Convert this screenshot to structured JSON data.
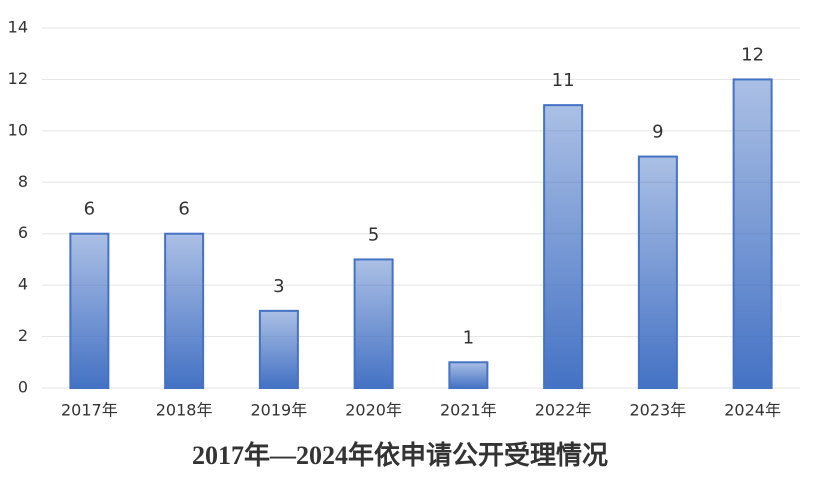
{
  "chart_data": {
    "type": "bar",
    "title": "2017年—2024年依申请公开受理情况",
    "categories": [
      "2017年",
      "2018年",
      "2019年",
      "2020年",
      "2021年",
      "2022年",
      "2023年",
      "2024年"
    ],
    "values": [
      6,
      6,
      3,
      5,
      1,
      11,
      9,
      12
    ],
    "color": "#4472c4",
    "ylim": [
      0,
      14
    ],
    "yticks": [
      0,
      2,
      4,
      6,
      8,
      10,
      12,
      14
    ],
    "grid": true
  }
}
